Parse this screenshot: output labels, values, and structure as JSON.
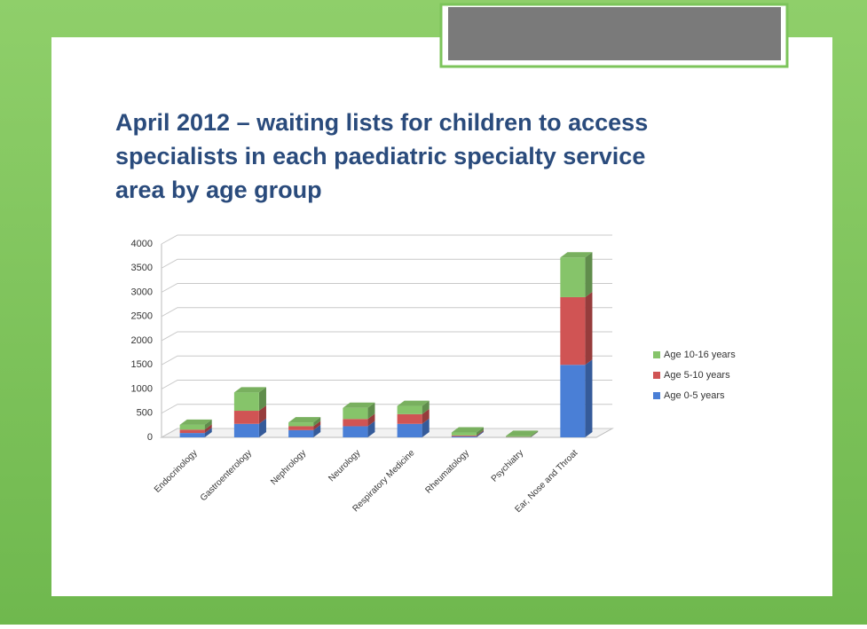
{
  "chart_data": {
    "type": "bar3d_stacked",
    "title": [
      "April 2012 – waiting lists for children to access",
      "specialists in each paediatric specialty service",
      "area by age group"
    ],
    "categories": [
      "Endocrinology",
      "Gastroenterology",
      "Nephrology",
      "Neurology",
      "Respiratory Medicine",
      "Rheumatology",
      "Psychiatry",
      "Ear, Nose and Throat"
    ],
    "series": [
      {
        "name": "Age 0-5 years",
        "color": "#4a7fd6",
        "values": [
          90,
          280,
          150,
          230,
          280,
          20,
          5,
          1500
        ]
      },
      {
        "name": "Age 5-10 years",
        "color": "#d05454",
        "values": [
          70,
          270,
          80,
          150,
          200,
          20,
          5,
          1400
        ]
      },
      {
        "name": "Age 10-16 years",
        "color": "#86c46a",
        "values": [
          100,
          380,
          80,
          230,
          170,
          60,
          20,
          820
        ]
      }
    ],
    "ylim": [
      0,
      4000
    ],
    "yticks": [
      0,
      500,
      1000,
      1500,
      2000,
      2500,
      3000,
      3500,
      4000
    ],
    "grid": true
  }
}
